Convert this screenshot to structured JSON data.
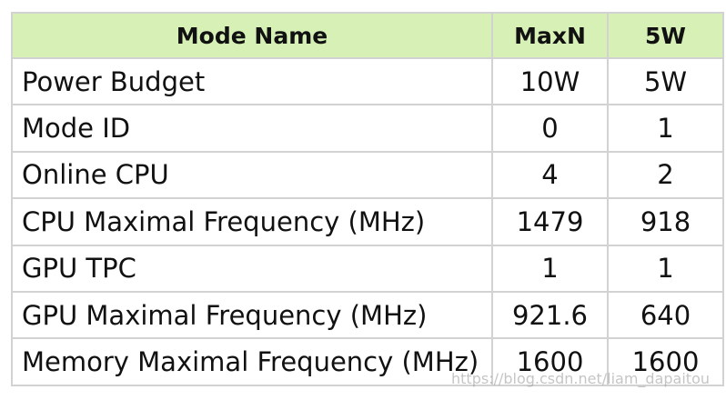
{
  "table": {
    "headers": [
      "Mode Name",
      "MaxN",
      "5W"
    ],
    "rows": [
      {
        "name": "Power Budget",
        "maxn": "10W",
        "w5": "5W"
      },
      {
        "name": "Mode ID",
        "maxn": "0",
        "w5": "1"
      },
      {
        "name": "Online CPU",
        "maxn": "4",
        "w5": "2"
      },
      {
        "name": "CPU Maximal Frequency (MHz)",
        "maxn": "1479",
        "w5": "918"
      },
      {
        "name": "GPU TPC",
        "maxn": "1",
        "w5": "1"
      },
      {
        "name": "GPU Maximal Frequency (MHz)",
        "maxn": "921.6",
        "w5": "640"
      },
      {
        "name": "Memory Maximal Frequency (MHz)",
        "maxn": "1600",
        "w5": "1600"
      }
    ]
  },
  "watermark": "https://blog.csdn.net/liam_dapaitou",
  "colors": {
    "header_bg": "#d6f0b6",
    "border": "#d2d2d2",
    "text": "#111111"
  }
}
